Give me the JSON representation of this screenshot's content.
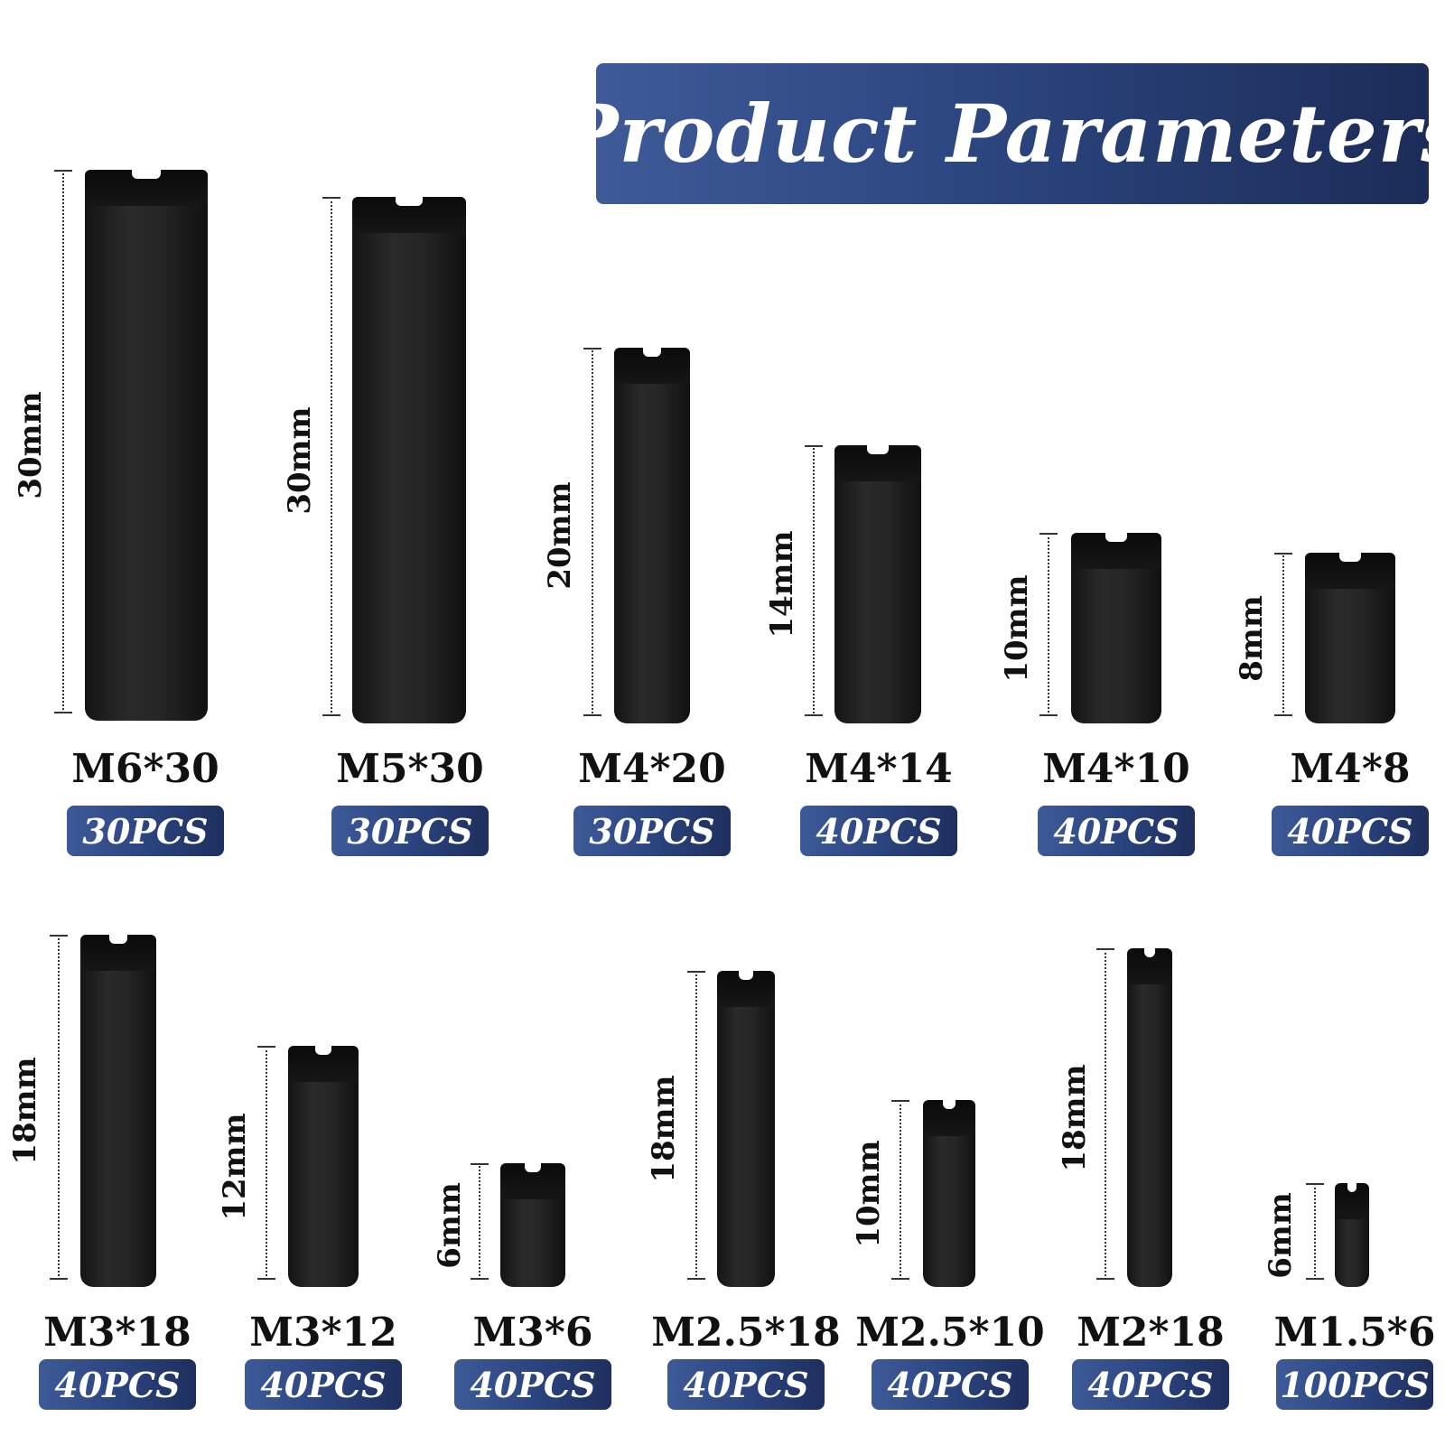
{
  "title": "Product Parameters",
  "items": [
    {
      "name": "M6*30",
      "qty": "30PCS",
      "length": "30mm"
    },
    {
      "name": "M5*30",
      "qty": "30PCS",
      "length": "30mm"
    },
    {
      "name": "M4*20",
      "qty": "30PCS",
      "length": "20mm"
    },
    {
      "name": "M4*14",
      "qty": "40PCS",
      "length": "14mm"
    },
    {
      "name": "M4*10",
      "qty": "40PCS",
      "length": "10mm"
    },
    {
      "name": "M4*8",
      "qty": "40PCS",
      "length": "8mm"
    },
    {
      "name": "M3*18",
      "qty": "40PCS",
      "length": "18mm"
    },
    {
      "name": "M3*12",
      "qty": "40PCS",
      "length": "12mm"
    },
    {
      "name": "M3*6",
      "qty": "40PCS",
      "length": "6mm"
    },
    {
      "name": "M2.5*18",
      "qty": "40PCS",
      "length": "18mm"
    },
    {
      "name": "M2.5*10",
      "qty": "40PCS",
      "length": "10mm"
    },
    {
      "name": "M2*18",
      "qty": "40PCS",
      "length": "18mm"
    },
    {
      "name": "M1.5*6",
      "qty": "100PCS",
      "length": "6mm"
    }
  ]
}
